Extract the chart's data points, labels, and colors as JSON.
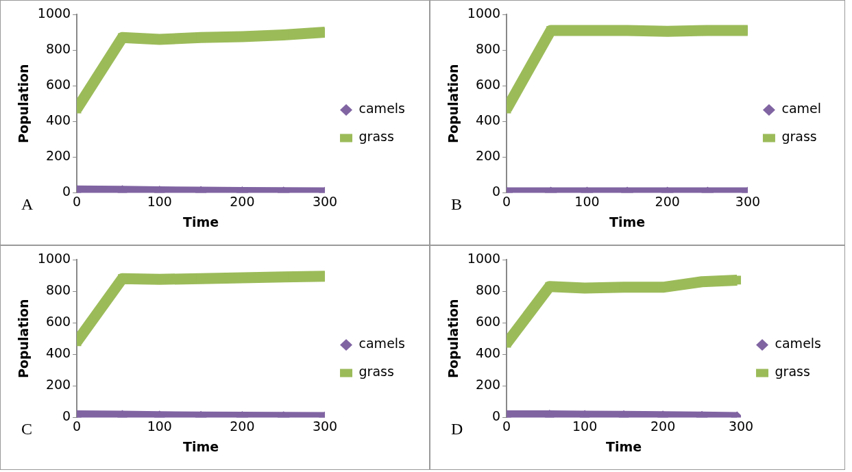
{
  "chart_data": [
    {
      "type": "line",
      "xlabel": "Time",
      "ylabel": "Population",
      "x": [
        0,
        55,
        100,
        150,
        200,
        250,
        300
      ],
      "xlim": [
        0,
        300
      ],
      "xticks": [
        0,
        100,
        200,
        300
      ],
      "ylim": [
        0,
        1000
      ],
      "yticks": [
        0,
        200,
        400,
        600,
        800,
        1000
      ],
      "grid": false,
      "legend": "right",
      "line_style": "solid",
      "annotations": [
        "A"
      ],
      "series": [
        {
          "name": "camels",
          "color": "#8064a2",
          "marker": "diamond",
          "values": [
            10,
            8,
            5,
            3,
            2,
            1,
            0
          ]
        },
        {
          "name": "grass",
          "color": "#9bbb59",
          "marker": "square",
          "values": [
            470,
            870,
            860,
            870,
            875,
            885,
            900
          ]
        }
      ]
    },
    {
      "type": "line",
      "xlabel": "Time",
      "ylabel": "Population",
      "x": [
        0,
        55,
        100,
        150,
        200,
        250,
        300
      ],
      "xlim": [
        0,
        300
      ],
      "xticks": [
        0,
        100,
        200,
        300
      ],
      "ylim": [
        0,
        1000
      ],
      "yticks": [
        0,
        200,
        400,
        600,
        800,
        1000
      ],
      "grid": false,
      "legend": "right",
      "line_style": "solid",
      "annotations": [
        "B"
      ],
      "series": [
        {
          "name": "camel",
          "color": "#8064a2",
          "marker": "diamond",
          "values": [
            0,
            0,
            0,
            0,
            0,
            0,
            0
          ]
        },
        {
          "name": "grass",
          "color": "#9bbb59",
          "marker": "square",
          "values": [
            470,
            910,
            910,
            910,
            905,
            910,
            910
          ]
        }
      ]
    },
    {
      "type": "line",
      "xlabel": "Time",
      "ylabel": "Population",
      "x": [
        0,
        55,
        100,
        150,
        200,
        250,
        300
      ],
      "xlim": [
        0,
        300
      ],
      "xticks": [
        0,
        100,
        200,
        300
      ],
      "ylim": [
        0,
        1000
      ],
      "yticks": [
        0,
        200,
        400,
        600,
        800,
        1000
      ],
      "grid": false,
      "legend": "right",
      "line_style": "solid",
      "annotations": [
        "C"
      ],
      "series": [
        {
          "name": "camels",
          "color": "#8064a2",
          "marker": "diamond",
          "values": [
            10,
            8,
            5,
            3,
            2,
            1,
            0
          ]
        },
        {
          "name": "grass",
          "color": "#9bbb59",
          "marker": "square",
          "values": [
            480,
            880,
            875,
            880,
            885,
            890,
            895
          ]
        }
      ]
    },
    {
      "type": "line",
      "xlabel": "Time",
      "ylabel": "Population",
      "x": [
        0,
        55,
        100,
        150,
        200,
        250,
        295
      ],
      "xlim": [
        0,
        300
      ],
      "xticks": [
        0,
        100,
        200,
        300
      ],
      "ylim": [
        0,
        1000
      ],
      "yticks": [
        0,
        200,
        400,
        600,
        800,
        1000
      ],
      "grid": false,
      "legend": "right",
      "line_style": "solid",
      "annotations": [
        "D"
      ],
      "series": [
        {
          "name": "camels",
          "color": "#8064a2",
          "marker": "diamond",
          "values": [
            10,
            10,
            8,
            7,
            5,
            3,
            0
          ]
        },
        {
          "name": "grass",
          "color": "#9bbb59",
          "marker": "square",
          "values": [
            470,
            830,
            820,
            825,
            825,
            860,
            870
          ]
        }
      ]
    }
  ]
}
